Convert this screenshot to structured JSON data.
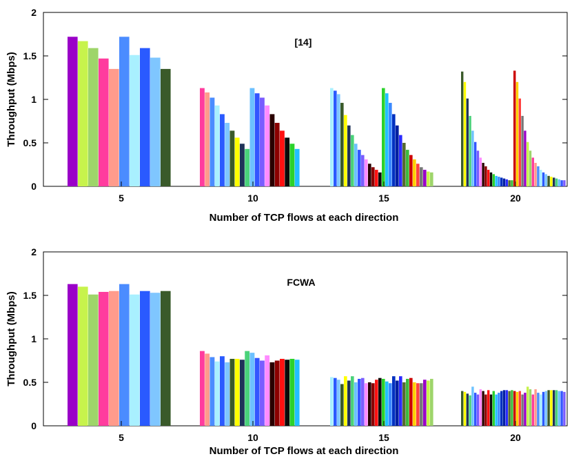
{
  "chart_data": [
    {
      "type": "bar",
      "title": "[14]",
      "xlabel": "Number of TCP flows at each direction",
      "ylabel": "Throughput (Mbps)",
      "ylim": [
        0,
        2
      ],
      "yticks": [
        "0",
        "0.5",
        "1",
        "1.5",
        "2"
      ],
      "grid": false,
      "categories": [
        "5",
        "10",
        "15",
        "20"
      ],
      "groups": [
        {
          "category": "5",
          "flows": 10,
          "values": [
            1.72,
            1.67,
            1.59,
            1.47,
            1.35,
            1.72,
            1.51,
            1.59,
            1.48,
            1.35
          ]
        },
        {
          "category": "10",
          "flows": 20,
          "values": [
            1.13,
            1.08,
            1.02,
            0.93,
            0.83,
            0.73,
            0.64,
            0.56,
            0.49,
            0.43,
            1.13,
            1.07,
            1.02,
            0.93,
            0.83,
            0.73,
            0.64,
            0.56,
            0.49,
            0.43
          ]
        },
        {
          "category": "15",
          "flows": 30,
          "values": [
            1.13,
            1.1,
            1.06,
            0.96,
            0.82,
            0.7,
            0.59,
            0.49,
            0.42,
            0.36,
            0.31,
            0.26,
            0.22,
            0.19,
            0.16,
            1.13,
            1.07,
            0.96,
            0.83,
            0.7,
            0.59,
            0.5,
            0.42,
            0.36,
            0.31,
            0.26,
            0.22,
            0.19,
            0.17,
            0.16
          ]
        },
        {
          "category": "20",
          "flows": 40,
          "values": [
            1.32,
            1.2,
            1.01,
            0.81,
            0.64,
            0.51,
            0.41,
            0.33,
            0.27,
            0.23,
            0.19,
            0.16,
            0.14,
            0.12,
            0.11,
            0.1,
            0.09,
            0.08,
            0.07,
            0.07,
            1.33,
            1.2,
            1.01,
            0.81,
            0.64,
            0.51,
            0.41,
            0.33,
            0.27,
            0.23,
            0.19,
            0.16,
            0.14,
            0.12,
            0.11,
            0.1,
            0.09,
            0.08,
            0.07,
            0.07
          ]
        }
      ]
    },
    {
      "type": "bar",
      "title": "FCWA",
      "xlabel": "Number of TCP flows at each direction",
      "ylabel": "Throughput (Mbps)",
      "ylim": [
        0,
        2
      ],
      "yticks": [
        "0",
        "0.5",
        "1",
        "1.5",
        "2"
      ],
      "grid": false,
      "categories": [
        "5",
        "10",
        "15",
        "20"
      ],
      "groups": [
        {
          "category": "5",
          "flows": 10,
          "values": [
            1.63,
            1.6,
            1.51,
            1.54,
            1.55,
            1.63,
            1.51,
            1.55,
            1.53,
            1.55
          ]
        },
        {
          "category": "10",
          "flows": 20,
          "values": [
            0.86,
            0.83,
            0.79,
            0.74,
            0.8,
            0.73,
            0.77,
            0.77,
            0.76,
            0.86,
            0.84,
            0.78,
            0.75,
            0.81,
            0.73,
            0.75,
            0.77,
            0.76,
            0.77,
            0.76
          ]
        },
        {
          "category": "15",
          "flows": 30,
          "values": [
            0.56,
            0.55,
            0.53,
            0.48,
            0.57,
            0.52,
            0.57,
            0.5,
            0.54,
            0.55,
            0.49,
            0.5,
            0.49,
            0.53,
            0.55,
            0.54,
            0.51,
            0.49,
            0.57,
            0.52,
            0.57,
            0.5,
            0.54,
            0.55,
            0.5,
            0.49,
            0.49,
            0.53,
            0.52,
            0.54
          ]
        },
        {
          "category": "20",
          "flows": 40,
          "values": [
            0.4,
            0.39,
            0.37,
            0.35,
            0.45,
            0.38,
            0.36,
            0.42,
            0.4,
            0.36,
            0.41,
            0.36,
            0.4,
            0.36,
            0.38,
            0.4,
            0.41,
            0.41,
            0.4,
            0.41,
            0.4,
            0.39,
            0.4,
            0.36,
            0.38,
            0.45,
            0.42,
            0.36,
            0.42,
            0.38,
            0.36,
            0.39,
            0.4,
            0.41,
            0.41,
            0.41,
            0.41,
            0.4,
            0.4,
            0.39
          ]
        }
      ]
    }
  ]
}
